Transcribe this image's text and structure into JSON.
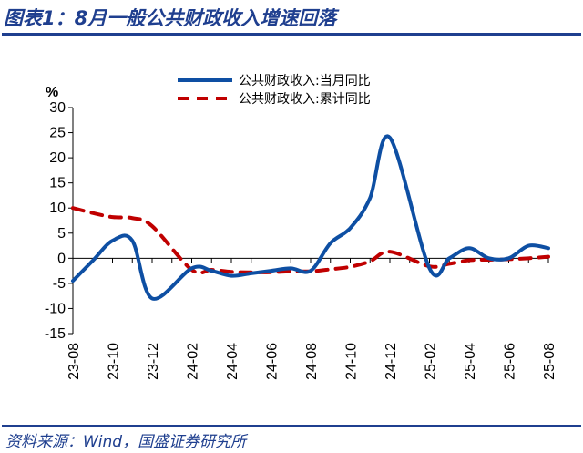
{
  "header": {
    "title": "图表1：8月一般公共财政收入增速回落"
  },
  "footer": {
    "source": "资料来源：Wind，国盛证券研究所"
  },
  "chart_data": {
    "type": "line",
    "ylabel": "%",
    "ylim": [
      -15,
      30
    ],
    "yticks": [
      -15,
      -10,
      -5,
      0,
      5,
      10,
      15,
      20,
      25,
      30
    ],
    "x_tick_labels": [
      "23-08",
      "23-10",
      "23-12",
      "24-02",
      "24-04",
      "24-06",
      "24-08",
      "24-10",
      "24-12",
      "25-02",
      "25-04",
      "25-06",
      "25-08"
    ],
    "x": [
      "23-08",
      "23-09",
      "23-10",
      "23-11",
      "23-12",
      "24-02",
      "24-03",
      "24-04",
      "24-05",
      "24-06",
      "24-07",
      "24-08",
      "24-09",
      "24-10",
      "24-11",
      "24-12",
      "25-02",
      "25-03",
      "25-04",
      "25-05",
      "25-06",
      "25-07",
      "25-08"
    ],
    "series": [
      {
        "name": "公共财政收入:当月同比",
        "color": "#0e4fa3",
        "style": "solid",
        "values": [
          -4.5,
          -0.5,
          3.5,
          3.5,
          -8.0,
          -2.0,
          -2.5,
          -3.5,
          -3.0,
          -2.5,
          -2.0,
          -2.5,
          3.0,
          6.0,
          12.0,
          24.0,
          -2.0,
          0.0,
          2.0,
          0.0,
          0.0,
          2.5,
          2.0
        ]
      },
      {
        "name": "公共财政收入:累计同比",
        "color": "#c00000",
        "style": "dashed",
        "values": [
          10.0,
          9.0,
          8.2,
          8.0,
          6.4,
          -2.3,
          -2.3,
          -2.7,
          -2.8,
          -2.8,
          -2.6,
          -2.6,
          -2.2,
          -1.7,
          -0.6,
          1.3,
          -1.6,
          -1.1,
          -0.4,
          -0.3,
          -0.2,
          0.0,
          0.3
        ]
      }
    ],
    "legend_position": "top",
    "grid": false
  }
}
